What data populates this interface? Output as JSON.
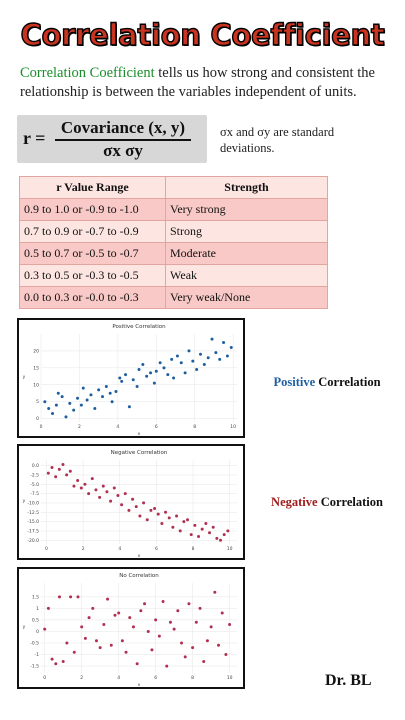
{
  "title": "Correlation Coefficient",
  "intro": {
    "highlight": "Correlation Coefficient",
    "rest": " tells us how strong and consistent the relationship is between the variables independent of units."
  },
  "formula": {
    "lhs": "r =",
    "numerator": "Covariance (x, y)",
    "denominator": "σx σy"
  },
  "sigma_note": "σx and σy are standard deviations.",
  "table": {
    "headers": [
      "r Value Range",
      "Strength"
    ],
    "rows": [
      [
        "0.9 to 1.0 or -0.9 to -1.0",
        "Very strong"
      ],
      [
        "0.7 to 0.9 or -0.7 to -0.9",
        "Strong"
      ],
      [
        "0.5 to 0.7 or -0.5 to -0.7",
        "Moderate"
      ],
      [
        "0.3 to 0.5 or -0.3 to -0.5",
        "Weak"
      ],
      [
        "0.0 to 0.3 or -0.0 to -0.3",
        "Very weak/None"
      ]
    ]
  },
  "captions": {
    "positive": {
      "word": "Positive",
      "rest": " Correlation"
    },
    "negative": {
      "word": "Negative",
      "rest": " Correlation"
    }
  },
  "author": "Dr. BL",
  "colors": {
    "title": "#c8341f",
    "highlight": "#1a8f2a",
    "positive": "#1f5fa0",
    "negative": "#a01c1c",
    "row_dark": "#f8c9c6",
    "row_light": "#fde6e2"
  },
  "chart_data": [
    {
      "type": "scatter",
      "title": "Positive Correlation",
      "xlabel": "x",
      "ylabel": "y",
      "xlim": [
        0,
        10.2
      ],
      "ylim": [
        -1,
        25
      ],
      "xticks": [
        0,
        2,
        4,
        6,
        8,
        10
      ],
      "yticks": [
        0,
        5,
        10,
        15,
        20
      ],
      "x": [
        0.2,
        0.4,
        0.6,
        0.8,
        0.9,
        1.1,
        1.3,
        1.5,
        1.7,
        1.9,
        2.1,
        2.2,
        2.4,
        2.6,
        2.8,
        3.0,
        3.2,
        3.4,
        3.6,
        3.7,
        3.9,
        4.1,
        4.2,
        4.4,
        4.6,
        4.8,
        5.0,
        5.1,
        5.3,
        5.5,
        5.7,
        5.9,
        6.0,
        6.2,
        6.4,
        6.6,
        6.8,
        6.9,
        7.1,
        7.3,
        7.5,
        7.7,
        7.9,
        8.1,
        8.3,
        8.5,
        8.7,
        8.9,
        9.1,
        9.3,
        9.5,
        9.7,
        9.9
      ],
      "y": [
        5.0,
        3.0,
        1.5,
        4.0,
        7.5,
        6.5,
        0.5,
        4.5,
        2.5,
        6.0,
        4.0,
        9.0,
        5.5,
        7.0,
        3.0,
        8.5,
        6.5,
        9.5,
        7.5,
        5.0,
        8.0,
        12.0,
        11.0,
        13.0,
        3.5,
        11.5,
        9.5,
        14.5,
        16.0,
        12.5,
        13.5,
        10.5,
        14.0,
        16.5,
        15.0,
        13.0,
        17.5,
        12.0,
        18.5,
        16.5,
        13.5,
        20.0,
        17.0,
        14.5,
        19.0,
        16.0,
        18.0,
        23.5,
        19.5,
        17.5,
        22.5,
        18.5,
        21.0
      ]
    },
    {
      "type": "scatter",
      "title": "Negative Correlation",
      "xlabel": "x",
      "ylabel": "y",
      "xlim": [
        -0.3,
        10.4
      ],
      "ylim": [
        -21,
        1.5
      ],
      "xticks": [
        0,
        2,
        4,
        6,
        8,
        10
      ],
      "yticks": [
        0.0,
        -2.5,
        -5.0,
        -7.5,
        -10.0,
        -12.5,
        -15.0,
        -17.5,
        -20.0
      ],
      "x": [
        0.1,
        0.3,
        0.5,
        0.7,
        0.9,
        1.1,
        1.3,
        1.5,
        1.7,
        1.9,
        2.1,
        2.3,
        2.5,
        2.7,
        2.9,
        3.1,
        3.3,
        3.5,
        3.7,
        3.9,
        4.1,
        4.3,
        4.5,
        4.7,
        4.9,
        5.1,
        5.3,
        5.5,
        5.7,
        5.9,
        6.1,
        6.3,
        6.5,
        6.7,
        6.9,
        7.1,
        7.3,
        7.5,
        7.7,
        7.9,
        8.1,
        8.3,
        8.5,
        8.7,
        8.9,
        9.1,
        9.3,
        9.5,
        9.7,
        9.9
      ],
      "y": [
        -2.0,
        -0.5,
        -3.0,
        -1.0,
        0.3,
        -2.5,
        -1.5,
        -5.5,
        -4.0,
        -6.0,
        -5.0,
        -7.5,
        -3.5,
        -6.5,
        -8.5,
        -5.5,
        -7.0,
        -9.5,
        -6.0,
        -8.0,
        -10.5,
        -7.5,
        -12.0,
        -9.0,
        -11.0,
        -13.5,
        -10.0,
        -14.5,
        -12.0,
        -11.5,
        -13.0,
        -15.5,
        -12.5,
        -14.0,
        -16.5,
        -13.5,
        -17.5,
        -15.0,
        -14.5,
        -18.5,
        -16.0,
        -19.0,
        -17.0,
        -15.5,
        -18.0,
        -16.5,
        -19.5,
        -20.0,
        -18.5,
        -17.5
      ]
    },
    {
      "type": "scatter",
      "title": "No Correlation",
      "xlabel": "x",
      "ylabel": "y",
      "xlim": [
        -0.2,
        10.4
      ],
      "ylim": [
        -1.8,
        2.1
      ],
      "xticks": [
        0,
        2,
        4,
        6,
        8,
        10
      ],
      "yticks": [
        1.5,
        1.0,
        0.5,
        0.0,
        -0.5,
        -1.0,
        -1.5
      ],
      "x": [
        0.0,
        0.2,
        0.4,
        0.6,
        0.8,
        1.0,
        1.2,
        1.4,
        1.6,
        1.8,
        2.0,
        2.2,
        2.4,
        2.6,
        2.8,
        3.0,
        3.2,
        3.4,
        3.6,
        3.8,
        4.0,
        4.2,
        4.4,
        4.6,
        4.8,
        5.0,
        5.2,
        5.4,
        5.6,
        5.8,
        6.0,
        6.2,
        6.4,
        6.6,
        6.8,
        7.0,
        7.2,
        7.4,
        7.6,
        7.8,
        8.0,
        8.2,
        8.4,
        8.6,
        8.8,
        9.0,
        9.2,
        9.4,
        9.6,
        9.8,
        10.0
      ],
      "y": [
        0.1,
        1.0,
        -1.2,
        -1.4,
        1.5,
        -1.3,
        -0.5,
        1.5,
        -0.9,
        1.5,
        0.2,
        -0.3,
        0.6,
        1.0,
        -0.4,
        -0.7,
        0.3,
        1.4,
        -0.6,
        0.7,
        0.8,
        -0.4,
        -0.9,
        0.6,
        0.2,
        -1.4,
        0.9,
        1.2,
        0.0,
        -0.8,
        0.5,
        -0.2,
        1.3,
        -1.5,
        0.4,
        0.1,
        0.9,
        -0.5,
        -1.1,
        1.2,
        -0.7,
        0.4,
        1.0,
        -1.3,
        -0.4,
        0.2,
        1.7,
        -0.6,
        0.8,
        -1.0,
        0.3
      ]
    }
  ]
}
